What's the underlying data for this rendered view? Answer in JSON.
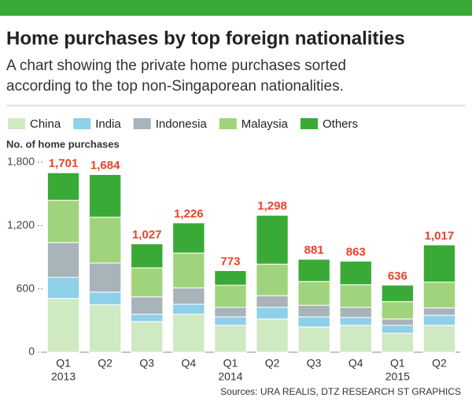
{
  "chart_data": {
    "type": "stacked_bar",
    "title": "Home purchases by top foreign nationalities",
    "subtitle_lines": [
      "A chart showing the private home purchases sorted",
      "according to the top non-Singaporean nationalities."
    ],
    "y_label": "No. of home purchases",
    "source": "Sources: URA REALIS, DTZ RESEARCH   ST GRAPHICS",
    "categories": [
      "Q1",
      "Q2",
      "Q3",
      "Q4",
      "Q1",
      "Q2",
      "Q3",
      "Q4",
      "Q1",
      "Q2"
    ],
    "years": [
      "2013",
      null,
      null,
      null,
      "2014",
      null,
      null,
      null,
      "2015",
      null
    ],
    "series": [
      {
        "name": "China",
        "color": "#cfe9c2",
        "values": [
          510,
          450,
          290,
          360,
          255,
          315,
          240,
          255,
          180,
          255
        ]
      },
      {
        "name": "India",
        "color": "#8ecfe9",
        "values": [
          200,
          120,
          70,
          95,
          80,
          110,
          95,
          75,
          75,
          95
        ]
      },
      {
        "name": "Indonesia",
        "color": "#a8b3ba",
        "values": [
          330,
          275,
          165,
          155,
          90,
          110,
          110,
          95,
          60,
          70
        ]
      },
      {
        "name": "Malaysia",
        "color": "#a0d47c",
        "values": [
          400,
          435,
          275,
          330,
          210,
          300,
          225,
          215,
          165,
          245
        ]
      },
      {
        "name": "Others",
        "color": "#3aaa36",
        "values": [
          261,
          404,
          227,
          286,
          138,
          463,
          211,
          223,
          156,
          352
        ]
      }
    ],
    "totals": [
      {
        "value": 1701,
        "label": "1,701"
      },
      {
        "value": 1684,
        "label": "1,684"
      },
      {
        "value": 1027,
        "label": "1,027"
      },
      {
        "value": 1226,
        "label": "1,226"
      },
      {
        "value": 773,
        "label": "773"
      },
      {
        "value": 1298,
        "label": "1,298"
      },
      {
        "value": 881,
        "label": "881"
      },
      {
        "value": 863,
        "label": "863"
      },
      {
        "value": 636,
        "label": "636"
      },
      {
        "value": 1017,
        "label": "1,017"
      }
    ],
    "ylim": [
      0,
      1800
    ],
    "yticks": [
      0,
      600,
      {
        "value": 1200,
        "label": "1,200"
      },
      {
        "value": 1800,
        "label": "1,800"
      }
    ],
    "grid": false
  }
}
